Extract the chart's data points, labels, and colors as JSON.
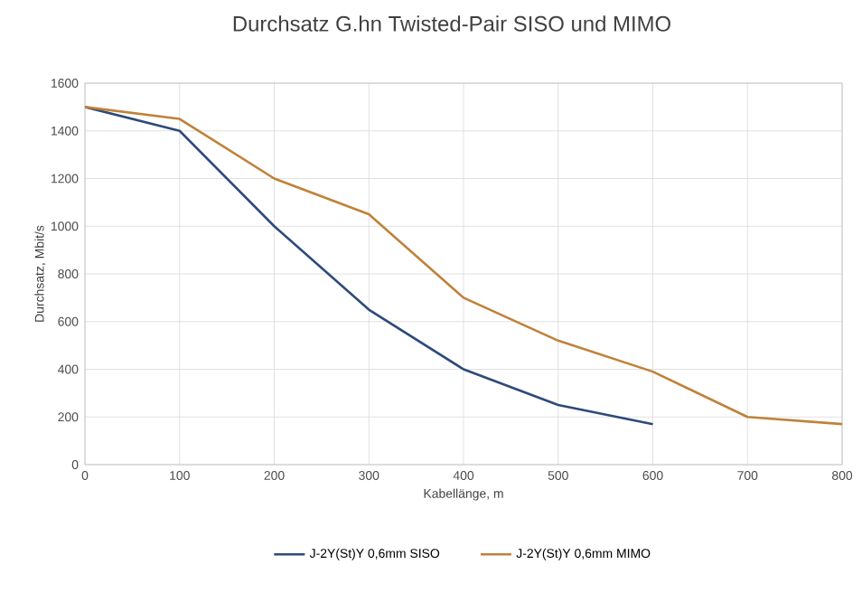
{
  "chart_data": {
    "type": "line",
    "title": "Durchsatz G.hn Twisted-Pair SISO und MIMO",
    "xlabel": "Kabellänge, m",
    "ylabel": "Durchsatz, Mbit/s",
    "series": [
      {
        "name": "J-2Y(St)Y 0,6mm SISO",
        "color": "#2e4a7a",
        "x": [
          0,
          100,
          200,
          300,
          400,
          500,
          600
        ],
        "values": [
          1500,
          1400,
          1000,
          650,
          400,
          250,
          170
        ]
      },
      {
        "name": "J-2Y(St)Y 0,6mm MIMO",
        "color": "#c0813a",
        "x": [
          0,
          100,
          200,
          300,
          400,
          500,
          600,
          700,
          800
        ],
        "values": [
          1500,
          1450,
          1200,
          1050,
          700,
          520,
          390,
          200,
          170
        ]
      }
    ],
    "xlim": [
      0,
      800
    ],
    "xticks": [
      0,
      100,
      200,
      300,
      400,
      500,
      600,
      700,
      800
    ],
    "ylim": [
      0,
      1600
    ],
    "yticks": [
      0,
      200,
      400,
      600,
      800,
      1000,
      1200,
      1400,
      1600
    ],
    "grid": true,
    "legend": "bottom",
    "marker": "none",
    "line_style": "solid"
  }
}
